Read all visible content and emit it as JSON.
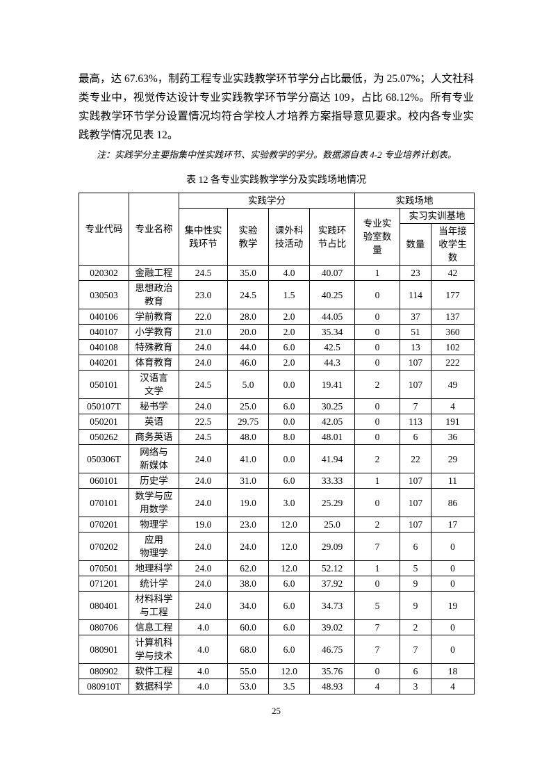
{
  "document": {
    "paragraph": "最高，达 67.63%，制药工程专业实践教学环节学分占比最低，为 25.07%；人文社科类专业中，视觉传达设计专业实践教学环节学分高达 109，占比 68.12%。所有专业实践教学环节学分设置情况均符合学校人才培养方案指导意见要求。校内各专业实践教学情况见表 12。",
    "note": "注：实践学分主要指集中性实践环节、实验教学的学分。数据源自表 4-2 专业培养计划表。",
    "table_title": "表 12 各专业实践教学学分及实践场地情况",
    "page_number": "25"
  },
  "table": {
    "header": {
      "code": "专业代码",
      "name": "专业名称",
      "practice_credits_group": "实践学分",
      "practice_sites_group": "实践场地",
      "concentrated": "集中性实\n践环节",
      "experiment": "实验\n教学",
      "extracurricular": "课外科\n技活动",
      "ratio": "实践环\n节占比",
      "labs": "专业实\n验室数\n量",
      "training_bases_group": "实习实训基地",
      "bases": "数量",
      "students": "当年接\n收学生\n数"
    },
    "row_keys": [
      "code",
      "name",
      "concentrated",
      "experiment",
      "extracurricular",
      "ratio",
      "labs",
      "bases",
      "students"
    ],
    "rows": [
      {
        "code": "020302",
        "name": "金融工程",
        "concentrated": "24.5",
        "experiment": "35.0",
        "extracurricular": "4.0",
        "ratio": "40.07",
        "labs": "1",
        "bases": "23",
        "students": "42"
      },
      {
        "code": "030503",
        "name": "思想政治\n教育",
        "concentrated": "23.0",
        "experiment": "24.5",
        "extracurricular": "1.5",
        "ratio": "40.25",
        "labs": "0",
        "bases": "114",
        "students": "177"
      },
      {
        "code": "040106",
        "name": "学前教育",
        "concentrated": "22.0",
        "experiment": "28.0",
        "extracurricular": "2.0",
        "ratio": "44.05",
        "labs": "0",
        "bases": "37",
        "students": "137"
      },
      {
        "code": "040107",
        "name": "小学教育",
        "concentrated": "21.0",
        "experiment": "20.0",
        "extracurricular": "2.0",
        "ratio": "35.34",
        "labs": "0",
        "bases": "51",
        "students": "360"
      },
      {
        "code": "040108",
        "name": "特殊教育",
        "concentrated": "24.0",
        "experiment": "44.0",
        "extracurricular": "6.0",
        "ratio": "42.5",
        "labs": "0",
        "bases": "13",
        "students": "102"
      },
      {
        "code": "040201",
        "name": "体育教育",
        "concentrated": "24.0",
        "experiment": "46.0",
        "extracurricular": "2.0",
        "ratio": "44.3",
        "labs": "0",
        "bases": "107",
        "students": "222"
      },
      {
        "code": "050101",
        "name": "汉语言\n文学",
        "concentrated": "24.5",
        "experiment": "5.0",
        "extracurricular": "0.0",
        "ratio": "19.41",
        "labs": "2",
        "bases": "107",
        "students": "49"
      },
      {
        "code": "050107T",
        "name": "秘书学",
        "concentrated": "24.0",
        "experiment": "25.0",
        "extracurricular": "6.0",
        "ratio": "30.25",
        "labs": "0",
        "bases": "7",
        "students": "4"
      },
      {
        "code": "050201",
        "name": "英语",
        "concentrated": "22.5",
        "experiment": "29.75",
        "extracurricular": "0.0",
        "ratio": "42.05",
        "labs": "0",
        "bases": "113",
        "students": "191"
      },
      {
        "code": "050262",
        "name": "商务英语",
        "concentrated": "24.5",
        "experiment": "48.0",
        "extracurricular": "8.0",
        "ratio": "48.01",
        "labs": "0",
        "bases": "6",
        "students": "36"
      },
      {
        "code": "050306T",
        "name": "网络与\n新媒体",
        "concentrated": "24.0",
        "experiment": "41.0",
        "extracurricular": "0.0",
        "ratio": "41.94",
        "labs": "2",
        "bases": "22",
        "students": "29"
      },
      {
        "code": "060101",
        "name": "历史学",
        "concentrated": "24.0",
        "experiment": "31.0",
        "extracurricular": "6.0",
        "ratio": "33.33",
        "labs": "1",
        "bases": "107",
        "students": "11"
      },
      {
        "code": "070101",
        "name": "数学与应\n用数学",
        "concentrated": "24.0",
        "experiment": "19.0",
        "extracurricular": "3.0",
        "ratio": "25.29",
        "labs": "0",
        "bases": "107",
        "students": "86"
      },
      {
        "code": "070201",
        "name": "物理学",
        "concentrated": "19.0",
        "experiment": "23.0",
        "extracurricular": "12.0",
        "ratio": "25.0",
        "labs": "2",
        "bases": "107",
        "students": "17"
      },
      {
        "code": "070202",
        "name": "应用\n物理学",
        "concentrated": "24.0",
        "experiment": "24.0",
        "extracurricular": "12.0",
        "ratio": "29.09",
        "labs": "7",
        "bases": "6",
        "students": "0"
      },
      {
        "code": "070501",
        "name": "地理科学",
        "concentrated": "24.0",
        "experiment": "62.0",
        "extracurricular": "12.0",
        "ratio": "52.12",
        "labs": "1",
        "bases": "5",
        "students": "0"
      },
      {
        "code": "071201",
        "name": "统计学",
        "concentrated": "24.0",
        "experiment": "38.0",
        "extracurricular": "6.0",
        "ratio": "37.92",
        "labs": "0",
        "bases": "9",
        "students": "0"
      },
      {
        "code": "080401",
        "name": "材料科学\n与工程",
        "concentrated": "24.0",
        "experiment": "34.0",
        "extracurricular": "6.0",
        "ratio": "34.73",
        "labs": "5",
        "bases": "9",
        "students": "19"
      },
      {
        "code": "080706",
        "name": "信息工程",
        "concentrated": "4.0",
        "experiment": "60.0",
        "extracurricular": "6.0",
        "ratio": "39.02",
        "labs": "7",
        "bases": "2",
        "students": "0"
      },
      {
        "code": "080901",
        "name": "计算机科\n学与技术",
        "concentrated": "4.0",
        "experiment": "68.0",
        "extracurricular": "6.0",
        "ratio": "46.75",
        "labs": "7",
        "bases": "7",
        "students": "0"
      },
      {
        "code": "080902",
        "name": "软件工程",
        "concentrated": "4.0",
        "experiment": "55.0",
        "extracurricular": "12.0",
        "ratio": "35.76",
        "labs": "0",
        "bases": "6",
        "students": "18"
      },
      {
        "code": "080910T",
        "name": "数据科学",
        "concentrated": "4.0",
        "experiment": "53.0",
        "extracurricular": "3.5",
        "ratio": "48.93",
        "labs": "4",
        "bases": "3",
        "students": "4"
      }
    ]
  }
}
